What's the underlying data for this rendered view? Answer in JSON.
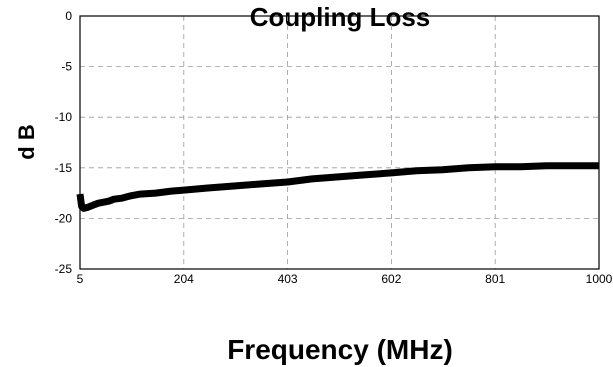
{
  "chart_data": {
    "type": "line",
    "title": "Coupling Loss",
    "xlabel": "Frequency (MHz)",
    "ylabel": "d B",
    "xlim": [
      5,
      1000
    ],
    "ylim": [
      -25,
      0
    ],
    "x_ticks": [
      "5",
      "204",
      "403",
      "602",
      "801",
      "1000"
    ],
    "y_ticks": [
      "0",
      "-5",
      "-10",
      "-15",
      "-20",
      "-25"
    ],
    "grid": true,
    "series": [
      {
        "color": "#000000",
        "x": [
          5,
          8,
          12,
          20,
          30,
          40,
          50,
          60,
          70,
          85,
          100,
          120,
          150,
          180,
          204,
          250,
          300,
          350,
          403,
          450,
          500,
          550,
          602,
          650,
          700,
          750,
          801,
          850,
          900,
          950,
          1000
        ],
        "y": [
          -17.6,
          -18.8,
          -19.0,
          -18.9,
          -18.7,
          -18.5,
          -18.4,
          -18.3,
          -18.1,
          -18.0,
          -17.8,
          -17.6,
          -17.5,
          -17.3,
          -17.2,
          -17.0,
          -16.8,
          -16.6,
          -16.4,
          -16.1,
          -15.9,
          -15.7,
          -15.5,
          -15.3,
          -15.2,
          -15.0,
          -14.9,
          -14.9,
          -14.8,
          -14.8,
          -14.8
        ]
      }
    ]
  }
}
